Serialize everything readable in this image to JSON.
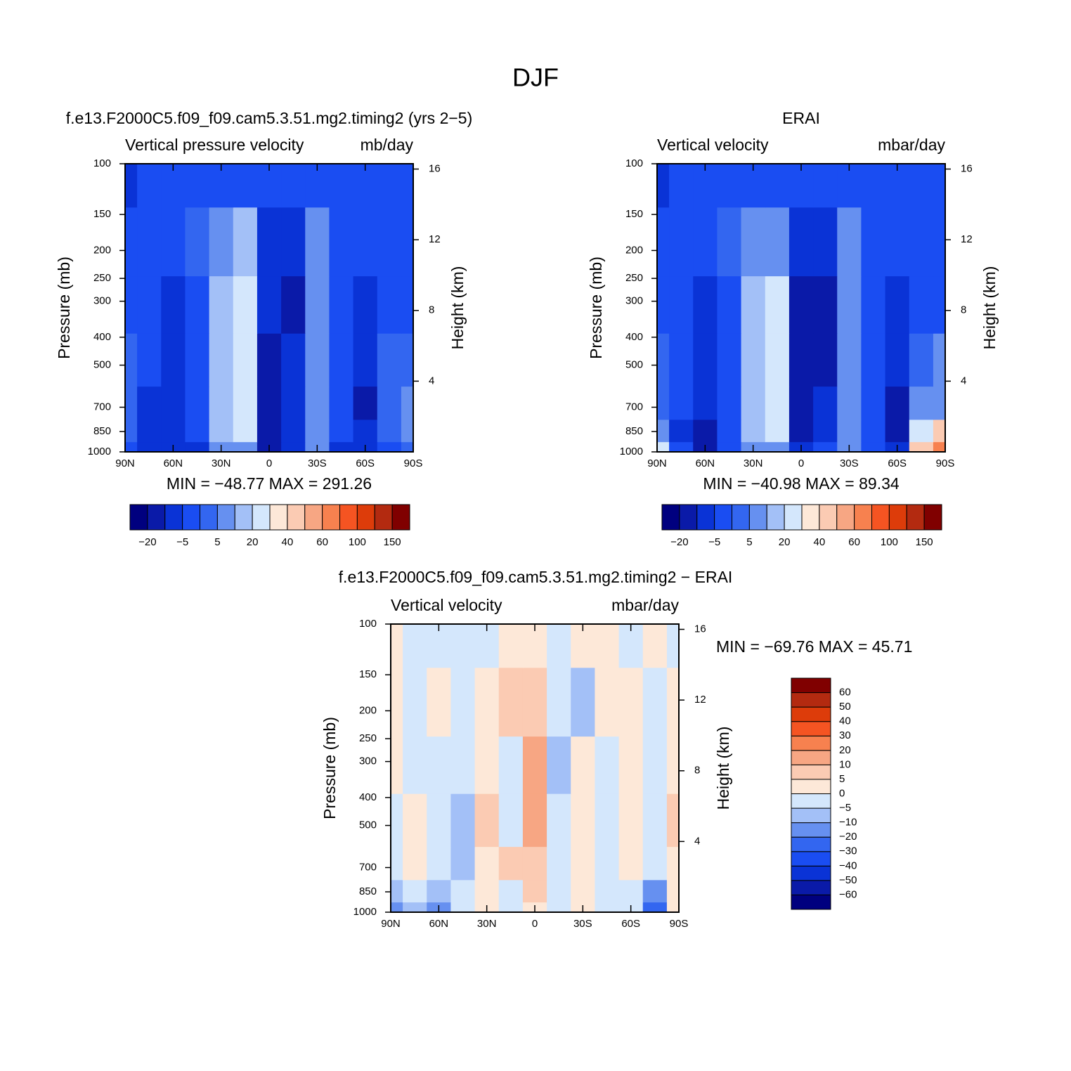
{
  "figure_title": "DJF",
  "chart_data": [
    {
      "type": "contour",
      "title": "f.e13.F2000C5.f09_f09.cam5.3.51.mg2.timing2 (yrs 2−5)",
      "subtitle": "Vertical pressure velocity",
      "units": "mb/day",
      "ylabel": "Pressure (mb)",
      "y2label": "Height (km)",
      "stats": "MIN = −48.77   MAX = 291.26",
      "x": [
        90,
        75,
        60,
        45,
        30,
        15,
        0,
        -15,
        -30,
        -45,
        -60,
        -75,
        -90
      ],
      "y": [
        1000,
        850,
        700,
        500,
        300,
        200,
        100
      ],
      "values": [
        [
          -3,
          -8,
          -10,
          -6,
          5,
          10,
          -15,
          -6,
          5,
          -8,
          -10,
          -3,
          0
        ],
        [
          3,
          -8,
          -12,
          -5,
          15,
          20,
          -18,
          -8,
          8,
          -5,
          -12,
          0,
          10
        ],
        [
          3,
          -6,
          -12,
          -5,
          18,
          20,
          -18,
          -10,
          10,
          -5,
          -15,
          0,
          5
        ],
        [
          3,
          -5,
          -10,
          -4,
          18,
          22,
          -15,
          -12,
          12,
          -3,
          -12,
          3,
          3
        ],
        [
          -3,
          -5,
          -8,
          -3,
          15,
          22,
          -10,
          -15,
          12,
          -3,
          -10,
          -3,
          -3
        ],
        [
          -5,
          -3,
          -3,
          0,
          10,
          15,
          -8,
          -12,
          8,
          -3,
          -5,
          -3,
          -5
        ],
        [
          -8,
          -5,
          -3,
          -3,
          -3,
          -3,
          -5,
          -5,
          -3,
          -5,
          -5,
          -5,
          -5
        ]
      ],
      "xlim": [
        90,
        -90
      ],
      "xticks": [
        {
          "value": 90,
          "label": "90N"
        },
        {
          "value": 60,
          "label": "60N"
        },
        {
          "value": 30,
          "label": "30N"
        },
        0,
        {
          "value": -30,
          "label": "30S"
        },
        {
          "value": -60,
          "label": "60S"
        },
        {
          "value": -90,
          "label": "90S"
        }
      ],
      "ylim": [
        1000,
        100
      ],
      "log_y": true,
      "yticks": [
        100,
        150,
        200,
        250,
        300,
        400,
        500,
        700,
        850,
        1000
      ],
      "y2lim": [
        0,
        16.3
      ],
      "y2ticks": [
        4,
        8,
        12,
        16
      ],
      "colorbar": {
        "orientation": "horizontal",
        "levels": [
          {
            "value": -20,
            "label": "−20"
          },
          null,
          {
            "value": -5,
            "label": "−5"
          },
          null,
          5,
          null,
          20,
          null,
          40,
          null,
          60,
          null,
          100,
          null,
          150
        ],
        "colors": [
          "#00007f",
          "#0a1aa8",
          "#0a33d6",
          "#1a4df2",
          "#3366f0",
          "#6690f0",
          "#a3c0f7",
          "#d4e7fc",
          "#fde8d8",
          "#fbcbb3",
          "#f7a683",
          "#f7814f",
          "#f55422",
          "#dd3c0a",
          "#b32a10",
          "#800000"
        ]
      }
    },
    {
      "type": "contour",
      "title": "ERAI",
      "subtitle": "Vertical velocity",
      "units": "mbar/day",
      "ylabel": "Pressure (mb)",
      "y2label": "Height (km)",
      "stats": "MIN = −40.98   MAX =  89.34",
      "x": [
        90,
        75,
        60,
        45,
        30,
        15,
        0,
        -15,
        -30,
        -45,
        -60,
        -75,
        -90
      ],
      "y": [
        1000,
        850,
        700,
        500,
        300,
        200,
        100
      ],
      "values": [
        [
          20,
          -5,
          -15,
          -5,
          8,
          12,
          -12,
          -5,
          5,
          -5,
          -10,
          40,
          60
        ],
        [
          10,
          -8,
          -15,
          -5,
          15,
          20,
          -15,
          -10,
          8,
          -5,
          -15,
          25,
          40
        ],
        [
          3,
          -5,
          -12,
          -3,
          18,
          22,
          -18,
          -12,
          10,
          -3,
          -15,
          8,
          12
        ],
        [
          3,
          -5,
          -10,
          -3,
          18,
          22,
          -20,
          -15,
          12,
          -3,
          -10,
          3,
          5
        ],
        [
          -3,
          -5,
          -8,
          -3,
          15,
          20,
          -15,
          -18,
          10,
          -3,
          -8,
          -3,
          -3
        ],
        [
          -5,
          -3,
          -3,
          0,
          10,
          12,
          -10,
          -12,
          5,
          -3,
          -5,
          -3,
          -5
        ],
        [
          -8,
          -5,
          -3,
          -3,
          -3,
          -3,
          -5,
          -5,
          -3,
          -5,
          -5,
          -5,
          -5
        ]
      ],
      "xlim": [
        90,
        -90
      ],
      "xticks": [
        {
          "value": 90,
          "label": "90N"
        },
        {
          "value": 60,
          "label": "60N"
        },
        {
          "value": 30,
          "label": "30N"
        },
        0,
        {
          "value": -30,
          "label": "30S"
        },
        {
          "value": -60,
          "label": "60S"
        },
        {
          "value": -90,
          "label": "90S"
        }
      ],
      "ylim": [
        1000,
        100
      ],
      "log_y": true,
      "yticks": [
        100,
        150,
        200,
        250,
        300,
        400,
        500,
        700,
        850,
        1000
      ],
      "y2lim": [
        0,
        16.3
      ],
      "y2ticks": [
        4,
        8,
        12,
        16
      ],
      "colorbar": {
        "orientation": "horizontal",
        "levels": [
          {
            "value": -20,
            "label": "−20"
          },
          null,
          {
            "value": -5,
            "label": "−5"
          },
          null,
          5,
          null,
          20,
          null,
          40,
          null,
          60,
          null,
          100,
          null,
          150
        ],
        "colors": [
          "#00007f",
          "#0a1aa8",
          "#0a33d6",
          "#1a4df2",
          "#3366f0",
          "#6690f0",
          "#a3c0f7",
          "#d4e7fc",
          "#fde8d8",
          "#fbcbb3",
          "#f7a683",
          "#f7814f",
          "#f55422",
          "#dd3c0a",
          "#b32a10",
          "#800000"
        ]
      }
    },
    {
      "type": "contour",
      "title": "f.e13.F2000C5.f09_f09.cam5.3.51.mg2.timing2 − ERAI",
      "subtitle": "Vertical velocity",
      "units": "mbar/day",
      "ylabel": "Pressure (mb)",
      "y2label": "Height (km)",
      "stats": "MIN = −69.76   MAX =  45.71",
      "x": [
        90,
        75,
        60,
        45,
        30,
        15,
        0,
        -15,
        -30,
        -45,
        -60,
        -75,
        -90
      ],
      "y": [
        1000,
        850,
        700,
        500,
        300,
        200,
        100
      ],
      "values": [
        [
          -20,
          -10,
          -15,
          -5,
          3,
          -3,
          3,
          -3,
          3,
          -3,
          -3,
          -30,
          3
        ],
        [
          -10,
          -5,
          -10,
          -3,
          3,
          -3,
          8,
          -3,
          3,
          -3,
          -3,
          -20,
          3
        ],
        [
          -3,
          3,
          -5,
          -8,
          3,
          5,
          8,
          -3,
          3,
          -3,
          3,
          -5,
          3
        ],
        [
          -3,
          3,
          -3,
          -8,
          8,
          -3,
          12,
          -5,
          3,
          -3,
          3,
          -3,
          8
        ],
        [
          3,
          -3,
          -3,
          -3,
          3,
          -3,
          12,
          -8,
          3,
          -3,
          3,
          -3,
          3
        ],
        [
          3,
          -3,
          3,
          -3,
          3,
          5,
          8,
          -3,
          -8,
          3,
          3,
          -3,
          3
        ],
        [
          3,
          -3,
          -3,
          -3,
          -3,
          3,
          3,
          -3,
          3,
          3,
          -3,
          3,
          -3
        ]
      ],
      "xlim": [
        90,
        -90
      ],
      "xticks": [
        {
          "value": 90,
          "label": "90N"
        },
        {
          "value": 60,
          "label": "60N"
        },
        {
          "value": 30,
          "label": "30N"
        },
        0,
        {
          "value": -30,
          "label": "30S"
        },
        {
          "value": -60,
          "label": "60S"
        },
        {
          "value": -90,
          "label": "90S"
        }
      ],
      "ylim": [
        1000,
        100
      ],
      "log_y": true,
      "yticks": [
        100,
        150,
        200,
        250,
        300,
        400,
        500,
        700,
        850,
        1000
      ],
      "y2lim": [
        0,
        16.3
      ],
      "y2ticks": [
        4,
        8,
        12,
        16
      ],
      "colorbar": {
        "orientation": "vertical",
        "levels": [
          {
            "value": -60,
            "label": "−60"
          },
          {
            "value": -50,
            "label": "−50"
          },
          {
            "value": -40,
            "label": "−40"
          },
          {
            "value": -30,
            "label": "−30"
          },
          {
            "value": -20,
            "label": "−20"
          },
          {
            "value": -10,
            "label": "−10"
          },
          {
            "value": -5,
            "label": "−5"
          },
          0,
          5,
          10,
          20,
          30,
          40,
          50,
          60
        ],
        "colors": [
          "#00007f",
          "#0a1aa8",
          "#0a33d6",
          "#1a4df2",
          "#3366f0",
          "#6690f0",
          "#a3c0f7",
          "#d4e7fc",
          "#fde8d8",
          "#fbcbb3",
          "#f7a683",
          "#f7814f",
          "#f55422",
          "#dd3c0a",
          "#b32a10",
          "#800000"
        ]
      }
    }
  ]
}
